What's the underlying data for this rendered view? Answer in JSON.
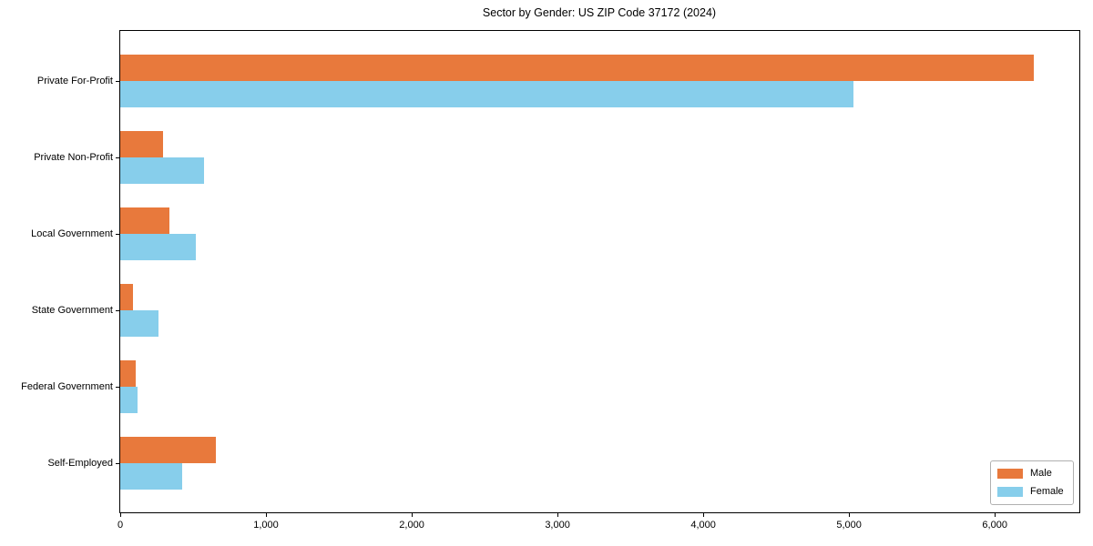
{
  "chart_data": {
    "type": "bar",
    "orientation": "horizontal",
    "title": "Sector by Gender: US ZIP Code 37172 (2024)",
    "categories": [
      "Private For-Profit",
      "Private Non-Profit",
      "Local Government",
      "State Government",
      "Federal Government",
      "Self-Employed"
    ],
    "series": [
      {
        "name": "Male",
        "color": "#e8793c",
        "values": [
          6270,
          293,
          337,
          87,
          106,
          655
        ]
      },
      {
        "name": "Female",
        "color": "#87ceeb",
        "values": [
          5030,
          574,
          518,
          262,
          119,
          424
        ]
      }
    ],
    "xlim": [
      0,
      6580
    ],
    "x_ticks": [
      0,
      1000,
      2000,
      3000,
      4000,
      5000,
      6000
    ],
    "x_tick_labels": [
      "0",
      "1,000",
      "2,000",
      "3,000",
      "4,000",
      "5,000",
      "6,000"
    ],
    "grid": false,
    "legend_position": "lower right",
    "axis_color": "#000000",
    "background_color": "#ffffff"
  }
}
